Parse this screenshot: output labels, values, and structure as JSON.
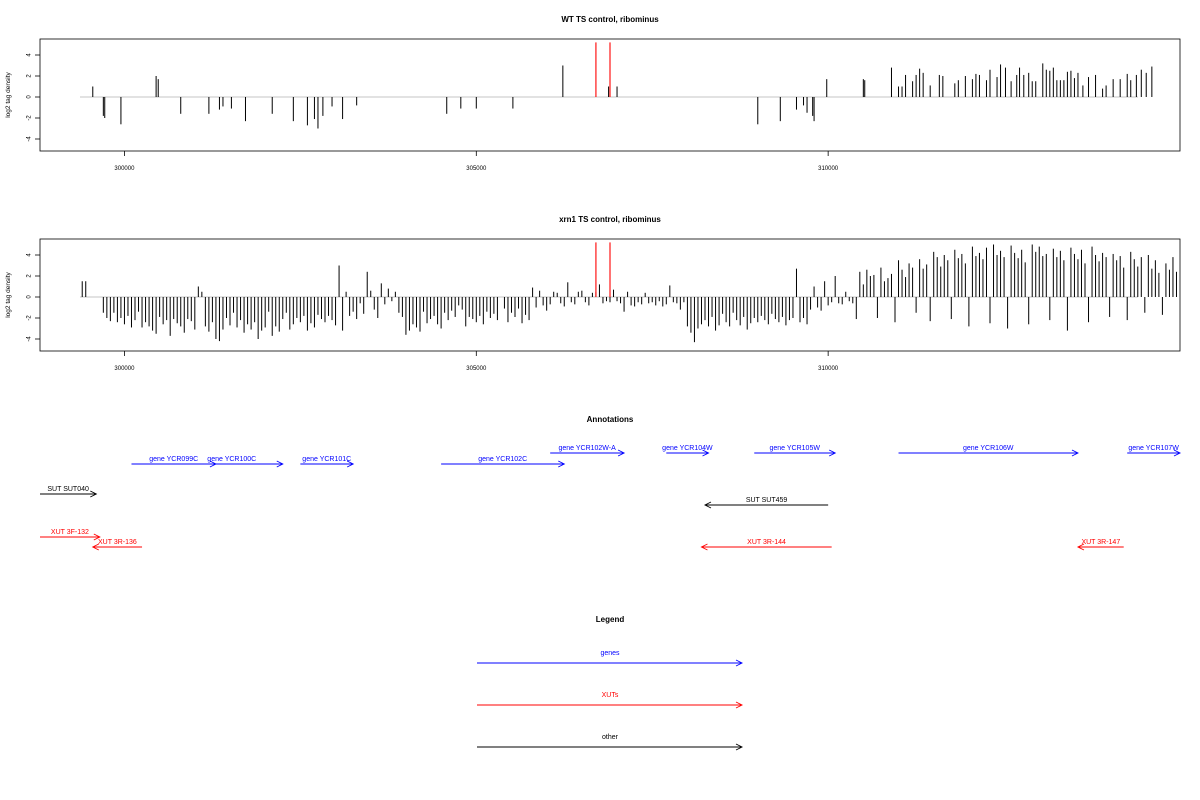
{
  "colors": {
    "gene": "#0000ff",
    "xut": "#ff0000",
    "other": "#000000",
    "marker": "#ff0000",
    "bar": "#000000",
    "baseline": "#b0b0b0"
  },
  "chart_data": [
    {
      "type": "bar",
      "title": "WT TS control, ribominus",
      "ylabel": "log2 tag density",
      "xticks": [
        "300000",
        "305000",
        "310000"
      ],
      "yticks": [
        "4",
        "2",
        "0",
        "-2",
        "-4"
      ],
      "xlim": [
        298800,
        315000
      ],
      "ylim": [
        -5,
        5.2
      ],
      "markers": [
        306700,
        306900
      ],
      "positions": [
        299550,
        299700,
        299720,
        299950,
        300450,
        300480,
        300800,
        301200,
        301350,
        301400,
        301520,
        301720,
        302100,
        302400,
        302600,
        302700,
        302750,
        302820,
        302950,
        303100,
        303300,
        304580,
        304780,
        305000,
        305520,
        306230,
        306880,
        307000,
        309000,
        309320,
        309550,
        309650,
        309700,
        309780,
        309800,
        309980,
        310500,
        310520,
        310900,
        311000,
        311050,
        311100,
        311200,
        311250,
        311300,
        311350,
        311450,
        311580,
        311630,
        311800,
        311850,
        311950,
        312050,
        312100,
        312150,
        312250,
        312300,
        312400,
        312450,
        312520,
        312600,
        312680,
        312720,
        312780,
        312850,
        312900,
        312950,
        313050,
        313100,
        313150,
        313200,
        313250,
        313300,
        313350,
        313400,
        313450,
        313500,
        313550,
        313620,
        313700,
        313800,
        313900,
        313950,
        314050,
        314150,
        314250,
        314300,
        314380,
        314450,
        314520,
        314600
      ],
      "values": [
        1,
        -1.8,
        -2,
        -2.6,
        2,
        1.7,
        -1.6,
        -1.6,
        -1.2,
        -0.9,
        -1.1,
        -2.3,
        -1.6,
        -2.3,
        -2.7,
        -2.1,
        -3,
        -1.8,
        -0.9,
        -2.1,
        -0.8,
        -1.6,
        -1.1,
        -1.1,
        -1.1,
        3,
        1,
        1,
        -2.6,
        -2.3,
        -1.2,
        -0.8,
        -1.5,
        -1.8,
        -2.3,
        1.7,
        1.7,
        1.6,
        2.8,
        1,
        1,
        2.1,
        1.5,
        2.1,
        2.7,
        2.3,
        1.1,
        2.1,
        2,
        1.3,
        1.6,
        2,
        1.7,
        2.2,
        2.1,
        1.6,
        2.6,
        1.9,
        3.1,
        2.8,
        1.5,
        2.1,
        2.8,
        2.1,
        2.3,
        1.5,
        1.5,
        3.2,
        2.6,
        2.5,
        2.8,
        1.6,
        1.6,
        1.6,
        2.4,
        2.5,
        1.8,
        2.3,
        1.1,
        1.9,
        2.1,
        0.8,
        1.1,
        1.7,
        1.7,
        2.2,
        1.6,
        2.1,
        2.6,
        2.3,
        2.9
      ]
    },
    {
      "type": "bar",
      "title": "xrn1 TS control, ribominus",
      "ylabel": "log2 tag density",
      "xticks": [
        "300000",
        "305000",
        "310000"
      ],
      "yticks": [
        "4",
        "2",
        "0",
        "-2",
        "-4"
      ],
      "xlim": [
        298800,
        315000
      ],
      "ylim": [
        -5,
        5.2
      ],
      "markers": [
        306700,
        306900
      ],
      "positions": [
        299400,
        299450,
        299700,
        299750,
        299800,
        299850,
        299900,
        299950,
        300000,
        300050,
        300100,
        300150,
        300200,
        300250,
        300300,
        300350,
        300400,
        300450,
        300500,
        300550,
        300600,
        300650,
        300700,
        300750,
        300800,
        300850,
        300900,
        300950,
        301000,
        301050,
        301100,
        301150,
        301200,
        301250,
        301300,
        301350,
        301400,
        301450,
        301500,
        301550,
        301600,
        301650,
        301700,
        301750,
        301800,
        301850,
        301900,
        301950,
        302000,
        302050,
        302100,
        302150,
        302200,
        302250,
        302300,
        302350,
        302400,
        302450,
        302500,
        302550,
        302600,
        302650,
        302700,
        302750,
        302800,
        302850,
        302900,
        302950,
        303000,
        303050,
        303100,
        303150,
        303200,
        303250,
        303300,
        303350,
        303400,
        303450,
        303500,
        303550,
        303600,
        303650,
        303700,
        303750,
        303800,
        303850,
        303900,
        303950,
        304000,
        304050,
        304100,
        304150,
        304200,
        304250,
        304300,
        304350,
        304400,
        304450,
        304500,
        304550,
        304600,
        304650,
        304700,
        304750,
        304800,
        304850,
        304900,
        304950,
        305000,
        305050,
        305100,
        305150,
        305200,
        305250,
        305300,
        305400,
        305450,
        305500,
        305550,
        305600,
        305650,
        305700,
        305750,
        305800,
        305850,
        305900,
        305950,
        306000,
        306050,
        306100,
        306150,
        306200,
        306250,
        306300,
        306350,
        306400,
        306450,
        306500,
        306550,
        306600,
        306650,
        306700,
        306750,
        306800,
        306850,
        306900,
        306950,
        307000,
        307050,
        307100,
        307150,
        307200,
        307250,
        307300,
        307350,
        307400,
        307450,
        307500,
        307550,
        307600,
        307650,
        307700,
        307750,
        307800,
        307850,
        307900,
        307950,
        308000,
        308050,
        308100,
        308150,
        308200,
        308250,
        308300,
        308350,
        308400,
        308450,
        308500,
        308550,
        308600,
        308650,
        308700,
        308750,
        308800,
        308850,
        308900,
        308950,
        309000,
        309050,
        309100,
        309150,
        309200,
        309250,
        309300,
        309350,
        309400,
        309450,
        309500,
        309550,
        309600,
        309650,
        309700,
        309750,
        309800,
        309850,
        309900,
        309950,
        310000,
        310050,
        310100,
        310150,
        310200,
        310250,
        310300,
        310350,
        310400,
        310450,
        310500,
        310550,
        310600,
        310650,
        310700,
        310750,
        310800,
        310850,
        310900,
        310950,
        311000,
        311050,
        311100,
        311150,
        311200,
        311250,
        311300,
        311350,
        311400,
        311450,
        311500,
        311550,
        311600,
        311650,
        311700,
        311750,
        311800,
        311850,
        311900,
        311950,
        312000,
        312050,
        312100,
        312150,
        312200,
        312250,
        312300,
        312350,
        312400,
        312450,
        312500,
        312550,
        312600,
        312650,
        312700,
        312750,
        312800,
        312850,
        312900,
        312950,
        313000,
        313050,
        313100,
        313150,
        313200,
        313250,
        313300,
        313350,
        313400,
        313450,
        313500,
        313550,
        313600,
        313650,
        313700,
        313750,
        313800,
        313850,
        313900,
        313950,
        314000,
        314050,
        314100,
        314150,
        314200,
        314250,
        314300,
        314350,
        314400,
        314450,
        314500,
        314550,
        314600,
        314650,
        314700,
        314750,
        314800,
        314850,
        314900,
        314950
      ],
      "values": [
        1.5,
        1.5,
        -1.5,
        -2.0,
        -2.3,
        -1.5,
        -2.4,
        -2.0,
        -2.6,
        -1.8,
        -2.9,
        -2.2,
        -1.4,
        -2.9,
        -2.4,
        -2.8,
        -3.2,
        -3.5,
        -1.9,
        -2.6,
        -2.2,
        -3.7,
        -2.1,
        -2.5,
        -2.8,
        -3.4,
        -2.1,
        -2.3,
        -3.1,
        1.0,
        0.5,
        -2.8,
        -3.3,
        -2.4,
        -4.0,
        -4.2,
        -3.1,
        -2.0,
        -2.7,
        -1.5,
        -2.9,
        -2.2,
        -3.4,
        -2.6,
        -3.1,
        -2.4,
        -4.0,
        -3.2,
        -2.9,
        -1.4,
        -3.7,
        -2.8,
        -3.3,
        -2.1,
        -1.5,
        -3.1,
        -2.6,
        -2.0,
        -2.4,
        -1.8,
        -3.2,
        -2.5,
        -2.9,
        -1.7,
        -2.1,
        -2.4,
        -1.8,
        -2.2,
        -2.7,
        3.0,
        -3.2,
        0.5,
        -1.8,
        -1.4,
        -2.1,
        -0.6,
        -1.6,
        2.4,
        0.6,
        -1.2,
        -2.0,
        1.3,
        -0.7,
        0.8,
        -0.4,
        0.5,
        -1.5,
        -1.9,
        -3.6,
        -3.2,
        -2.6,
        -2.9,
        -3.3,
        -1.4,
        -2.5,
        -2.1,
        -1.8,
        -2.6,
        -3.0,
        -1.5,
        -2.2,
        -1.3,
        -1.9,
        -0.8,
        -1.2,
        -2.8,
        -1.9,
        -2.1,
        -2.4,
        -1.8,
        -2.6,
        -1.4,
        -2.0,
        -1.6,
        -2.2,
        -1.1,
        -2.4,
        -1.5,
        -1.9,
        -1.1,
        -2.5,
        -1.7,
        -2.2,
        0.9,
        -1.0,
        0.6,
        -0.8,
        -1.3,
        -0.7,
        0.5,
        0.4,
        -0.6,
        -0.9,
        1.4,
        -0.5,
        -0.7,
        0.5,
        0.6,
        -0.5,
        -0.8,
        0.4,
        0.5,
        1.2,
        -0.6,
        -0.4,
        -0.5,
        0.7,
        -0.4,
        -0.6,
        -1.4,
        0.5,
        -0.8,
        -0.9,
        -0.5,
        -0.7,
        0.4,
        -0.6,
        -0.5,
        -0.8,
        -0.4,
        -0.9,
        -0.7,
        1.1,
        -0.5,
        -0.6,
        -1.2,
        -0.5,
        -2.8,
        -3.4,
        -4.3,
        -3.0,
        -2.6,
        -2.2,
        -2.8,
        -1.9,
        -3.2,
        -2.7,
        -1.6,
        -2.4,
        -2.8,
        -1.5,
        -2.2,
        -2.7,
        -1.9,
        -3.1,
        -2.5,
        -2.0,
        -2.4,
        -1.8,
        -2.2,
        -2.6,
        -1.6,
        -2.1,
        -2.4,
        -1.9,
        -2.7,
        -2.2,
        -2.0,
        2.7,
        -2.4,
        -2.0,
        -2.6,
        -1.2,
        1.0,
        -1.0,
        -1.3,
        1.5,
        -0.8,
        -0.5,
        2.0,
        -0.6,
        -0.7,
        0.5,
        -0.4,
        -0.6,
        -2.1,
        2.4,
        1.2,
        2.6,
        2.0,
        2.1,
        -2.0,
        2.8,
        1.5,
        1.8,
        2.2,
        -2.4,
        3.5,
        2.6,
        1.9,
        3.2,
        2.8,
        -1.5,
        3.6,
        2.7,
        3.1,
        -2.3,
        4.3,
        3.8,
        2.9,
        4.0,
        3.5,
        -2.1,
        4.5,
        3.7,
        4.1,
        3.2,
        -2.8,
        4.8,
        3.9,
        4.2,
        3.6,
        4.7,
        -2.5,
        5.0,
        4.0,
        4.4,
        3.8,
        -3.0,
        4.9,
        4.2,
        3.7,
        4.5,
        3.3,
        -2.6,
        5.0,
        4.3,
        4.8,
        3.9,
        4.1,
        -2.2,
        4.6,
        3.8,
        4.4,
        3.5,
        -3.2,
        4.7,
        4.1,
        3.6,
        4.5,
        3.2,
        -2.4,
        4.8,
        4.0,
        3.4,
        4.2,
        3.8,
        -1.9,
        4.1,
        3.5,
        3.9,
        2.8,
        -2.2,
        4.3,
        3.6,
        2.9,
        3.8,
        -1.5,
        4.0,
        2.7,
        3.5,
        2.3,
        -1.7,
        3.2,
        2.6,
        3.8,
        2.4,
        4.2,
        3.1,
        2.7
      ]
    },
    {
      "type": "table",
      "title": "Annotations",
      "features": [
        {
          "label": "gene YCR099C",
          "kind": "gene",
          "start": 300100,
          "end": 301300
        },
        {
          "label": "gene YCR100C",
          "kind": "gene",
          "start": 300800,
          "end": 302250
        },
        {
          "label": "gene YCR101C",
          "kind": "gene",
          "start": 302500,
          "end": 303250
        },
        {
          "label": "gene YCR102C",
          "kind": "gene",
          "start": 304500,
          "end": 306250
        },
        {
          "label": "gene YCR102W-A",
          "kind": "gene",
          "start": 306050,
          "end": 307100
        },
        {
          "label": "gene YCR104W",
          "kind": "gene",
          "start": 307700,
          "end": 308300
        },
        {
          "label": "gene YCR105W",
          "kind": "gene",
          "start": 308950,
          "end": 310100
        },
        {
          "label": "gene YCR106W",
          "kind": "gene",
          "start": 311000,
          "end": 313550
        },
        {
          "label": "gene YCR107W",
          "kind": "gene",
          "start": 314250,
          "end": 315000
        },
        {
          "label": "SUT SUT040",
          "kind": "other",
          "start": 298800,
          "end": 299600
        },
        {
          "label": "SUT SUT459",
          "kind": "other",
          "start": 310000,
          "end": 308250
        },
        {
          "label": "XUT 3F-132",
          "kind": "xut",
          "start": 298800,
          "end": 299650
        },
        {
          "label": "XUT 3R-136",
          "kind": "xut",
          "start": 300250,
          "end": 299550
        },
        {
          "label": "XUT 3R-144",
          "kind": "xut",
          "start": 310050,
          "end": 308200
        },
        {
          "label": "XUT 3R-147",
          "kind": "xut",
          "start": 314200,
          "end": 313550
        }
      ],
      "legend_title": "Legend",
      "legend": [
        {
          "label": "genes",
          "kind": "gene"
        },
        {
          "label": "XUTs",
          "kind": "xut"
        },
        {
          "label": "other",
          "kind": "other"
        }
      ]
    }
  ]
}
